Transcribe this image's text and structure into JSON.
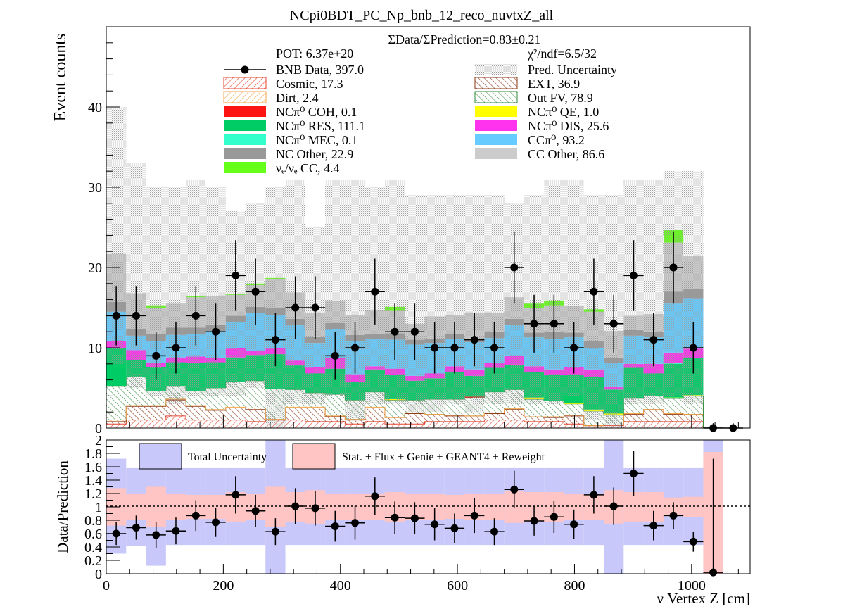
{
  "title": "NCpi0BDT_PC_Np_bnb_12_reco_nuvtxZ_all",
  "colors": {
    "cosmic": "#e8432e",
    "dirt": "#f7a64b",
    "ext": "#8b3a1a",
    "outfv": "#2e8b3a",
    "nc_coh": "#ff1414",
    "nc_res": "#00cc66",
    "nc_mec": "#33ffcc",
    "nc_qe": "#ffff00",
    "nc_dis": "#ff33ee",
    "cc_pi0": "#66ccff",
    "nc_other": "#999999",
    "cc_other": "#cccccc",
    "nue_cc": "#66ff1a",
    "pred_unc": "#b0b0b0",
    "total_unc": "#c8c8fa",
    "syst_unc": "#ffc4c4"
  },
  "top": {
    "ylabel": "Event counts",
    "ratio_text": "ΣData/ΣPrediction=0.83±0.21",
    "pot_text": "POT: 6.37e+20",
    "chi2_text": "χ²/ndf=6.5/32",
    "legend": {
      "bnb_data": "BNB Data, 397.0",
      "pred_unc": "Pred. Uncertainty",
      "cosmic": "Cosmic, 17.3",
      "ext": "EXT, 36.9",
      "dirt": "Dirt, 2.4",
      "outfv": "Out FV, 78.9",
      "nc_coh": "NCπ⁰ COH,  0.1",
      "nc_qe": "NCπ⁰ QE,  1.0",
      "nc_res": "NCπ⁰ RES,  111.1",
      "nc_dis": "NCπ⁰ DIS,  25.6",
      "nc_mec": "NCπ⁰ MEC,  0.1",
      "cc_pi0": "CCπ⁰, 93.2",
      "nc_other": "NC Other, 22.9",
      "cc_other": "CC Other, 86.6",
      "nue_cc": "νₑ/ν̄ₑ CC, 4.4"
    }
  },
  "bottom": {
    "ylabel": "Data/Prediction",
    "xlabel": "ν Vertex Z [cm]",
    "legend_total": "Total Uncertainty",
    "legend_syst": "Stat. + Flux + Genie + GEANT4 + Reweight"
  },
  "chart_data": {
    "type": "bar",
    "stacked": true,
    "x_edges": [
      0,
      34,
      68,
      102,
      136,
      170,
      204,
      238,
      272,
      306,
      340,
      374,
      408,
      442,
      476,
      510,
      544,
      578,
      612,
      646,
      680,
      714,
      748,
      782,
      816,
      850,
      884,
      918,
      952,
      986,
      1020,
      1054,
      1088
    ],
    "xlim": [
      0,
      1100
    ],
    "x_ticks": [
      0,
      200,
      400,
      600,
      800,
      1000
    ],
    "ylim": [
      0,
      50
    ],
    "y_ticks": [
      0,
      10,
      20,
      30,
      40
    ],
    "series": [
      {
        "key": "cosmic",
        "values": [
          0.5,
          1.0,
          1.0,
          1.5,
          1.0,
          1.0,
          1.0,
          0.8,
          1.0,
          1.0,
          0.8,
          0.8,
          0.5,
          0.8,
          0.5,
          0.5,
          0.8,
          0.8,
          0.8,
          1.0,
          1.0,
          0.8,
          0.8,
          0.5,
          0.3,
          0.3,
          0.8,
          0.8,
          0.8,
          0.8,
          0,
          0
        ]
      },
      {
        "key": "ext",
        "values": [
          0.3,
          1.7,
          1.7,
          2.0,
          1.7,
          1.2,
          1.5,
          1.5,
          0,
          1.5,
          1.7,
          0.6,
          0.5,
          1.7,
          0.8,
          1.3,
          0.9,
          0.7,
          0.7,
          0.8,
          1.3,
          0.6,
          0.5,
          1.0,
          0,
          0.1,
          0.9,
          1.5,
          0.9,
          0.9,
          0,
          0
        ]
      },
      {
        "key": "dirt",
        "values": [
          0.2,
          0.1,
          0.1,
          0.1,
          0.1,
          0.1,
          0.1,
          0.2,
          0.1,
          0.1,
          0.1,
          0.1,
          0.1,
          0.1,
          0,
          0.1,
          0,
          0.1,
          0,
          0.1,
          0.1,
          0,
          0.1,
          0.1,
          0,
          0,
          0.1,
          0,
          0.1,
          0,
          0,
          0
        ]
      },
      {
        "key": "outfv",
        "values": [
          4.2,
          3.6,
          1.8,
          1.6,
          1.8,
          2.7,
          3.2,
          3.4,
          3.8,
          2.2,
          1.8,
          2.7,
          2.4,
          1.9,
          2.2,
          1.6,
          1.9,
          2.0,
          2.3,
          2.6,
          2.4,
          2.2,
          2.0,
          1.4,
          1.8,
          1.2,
          1.9,
          1.7,
          1.9,
          2.3,
          0.1,
          0
        ]
      },
      {
        "key": "nc_coh",
        "values": [
          0,
          0,
          0,
          0,
          0,
          0,
          0,
          0,
          0,
          0,
          0,
          0,
          0,
          0,
          0,
          0,
          0,
          0,
          0.1,
          0,
          0,
          0,
          0,
          0,
          0,
          0,
          0,
          0,
          0,
          0,
          0,
          0
        ]
      },
      {
        "key": "nc_qe",
        "values": [
          0,
          0,
          0,
          0,
          0,
          0,
          0,
          0,
          0,
          0,
          0,
          0,
          0,
          0,
          0.1,
          0,
          0,
          0,
          0,
          0,
          0,
          0.2,
          0,
          0.1,
          0.2,
          0.2,
          0,
          0,
          0.1,
          0.1,
          0,
          0
        ]
      },
      {
        "key": "nc_res",
        "values": [
          4.8,
          2.1,
          3.0,
          3.0,
          3.5,
          3.2,
          3.0,
          3.2,
          4.3,
          3.0,
          2.4,
          3.2,
          2.2,
          2.8,
          3.0,
          2.4,
          2.6,
          3.4,
          2.6,
          3.0,
          3.1,
          3.2,
          3.2,
          3.5,
          4.1,
          3.0,
          3.8,
          2.8,
          4.2,
          4.6,
          0,
          0
        ]
      },
      {
        "key": "nc_mec",
        "values": [
          0,
          0,
          0,
          0,
          0,
          0,
          0,
          0,
          0,
          0,
          0,
          0,
          0,
          0,
          0,
          0,
          0,
          0,
          0,
          0,
          0,
          0,
          0,
          0,
          0,
          0,
          0,
          0,
          0.1,
          0,
          0,
          0
        ]
      },
      {
        "key": "nc_dis",
        "values": [
          0.8,
          1.2,
          0.5,
          0.6,
          0.8,
          0.5,
          1.2,
          0.5,
          0.8,
          0.6,
          0.8,
          1.3,
          1.0,
          0.4,
          0.8,
          0.6,
          0.6,
          0.7,
          0.8,
          0.6,
          1.1,
          0.7,
          0.7,
          1.0,
          0.9,
          0.3,
          0.5,
          1.2,
          1.3,
          1.2,
          0,
          0
        ]
      },
      {
        "key": "cc_pi0",
        "values": [
          3.7,
          1.8,
          2.7,
          2.8,
          2.8,
          3.4,
          3.2,
          4.7,
          4.1,
          4.4,
          3.0,
          3.6,
          4.1,
          3.4,
          3.6,
          3.9,
          3.8,
          3.4,
          3.4,
          3.1,
          3.8,
          3.6,
          3.8,
          3.7,
          2.7,
          3.0,
          3.5,
          3.3,
          6.1,
          6.2,
          0,
          0
        ]
      },
      {
        "key": "nc_other",
        "values": [
          1.2,
          0.8,
          0.9,
          0.9,
          0.8,
          0.8,
          0.8,
          0.8,
          0.9,
          0.8,
          0.8,
          0.8,
          0.8,
          0.6,
          0.8,
          0.6,
          0.5,
          0.6,
          0.4,
          0.8,
          0.8,
          0.6,
          0.9,
          0.6,
          0.9,
          0.6,
          0.7,
          0.7,
          1.5,
          1.2,
          0,
          0
        ]
      },
      {
        "key": "cc_other",
        "values": [
          6.0,
          4.5,
          3.3,
          3.0,
          3.8,
          3.6,
          2.6,
          2.7,
          3.6,
          3.3,
          3.0,
          2.8,
          2.5,
          3.0,
          2.8,
          2.0,
          2.8,
          2.4,
          3.3,
          2.4,
          2.7,
          3.1,
          3.3,
          3.3,
          3.6,
          3.4,
          1.8,
          2.2,
          6.1,
          4.1,
          0,
          0
        ]
      },
      {
        "key": "nue_cc",
        "values": [
          0,
          0,
          0.3,
          0,
          0.1,
          0,
          0.1,
          0.2,
          0.1,
          0,
          0,
          0,
          0,
          0,
          0.5,
          0,
          0,
          0,
          0,
          0,
          0,
          0.5,
          0.6,
          0,
          0.3,
          0,
          0,
          0,
          1.6,
          0,
          0,
          0
        ]
      }
    ],
    "pred_unc_high": [
      40,
      33,
      30,
      30,
      31,
      30,
      27,
      28,
      30,
      31,
      25,
      31,
      31,
      30,
      31,
      29,
      29,
      29,
      29,
      29,
      28,
      29,
      31,
      31,
      29,
      29,
      31,
      31,
      32,
      32,
      0.2,
      0.1
    ],
    "pred_unc_low": [
      8,
      5,
      4,
      3,
      4,
      4,
      4,
      5,
      0,
      3,
      3,
      4,
      1,
      3,
      3,
      2,
      2,
      3,
      2,
      3,
      3,
      3,
      3,
      4,
      1,
      0,
      3,
      3,
      4,
      3,
      0,
      0
    ],
    "data": {
      "name": "BNB Data, 397.0",
      "values": [
        14,
        14,
        9,
        10,
        14,
        12,
        19,
        17,
        11,
        15,
        15,
        9,
        10,
        17,
        12,
        12,
        10,
        10,
        11,
        10,
        20,
        13,
        13,
        10,
        17,
        13,
        19,
        11,
        20,
        10,
        0,
        0
      ],
      "err": [
        3.7,
        3.7,
        3.0,
        3.2,
        3.7,
        3.5,
        4.4,
        4.1,
        3.3,
        3.9,
        3.9,
        3.0,
        3.2,
        4.1,
        3.5,
        3.5,
        3.2,
        3.2,
        3.3,
        3.2,
        4.5,
        3.6,
        3.6,
        3.2,
        4.1,
        3.6,
        4.4,
        3.3,
        4.5,
        3.2,
        0.6,
        0.6
      ]
    },
    "ratio": {
      "ylim": [
        0,
        2
      ],
      "y_ticks": [
        0,
        0.2,
        0.4,
        0.6,
        0.8,
        1,
        1.2,
        1.4,
        1.6,
        1.8,
        2
      ],
      "values": [
        0.6,
        0.69,
        0.58,
        0.64,
        0.87,
        0.77,
        1.18,
        0.94,
        0.63,
        1.01,
        0.98,
        0.71,
        0.76,
        1.16,
        0.84,
        0.83,
        0.74,
        0.68,
        0.87,
        0.63,
        1.26,
        0.79,
        0.85,
        0.74,
        1.18,
        1.01,
        1.5,
        0.72,
        0.87,
        0.48,
        0.02,
        null
      ],
      "err": [
        0.17,
        0.18,
        0.19,
        0.2,
        0.23,
        0.22,
        0.28,
        0.24,
        0.2,
        0.27,
        0.26,
        0.23,
        0.25,
        0.28,
        0.24,
        0.24,
        0.24,
        0.22,
        0.26,
        0.2,
        0.28,
        0.22,
        0.24,
        0.22,
        0.28,
        0.28,
        0.34,
        0.22,
        0.2,
        0.15,
        1.7,
        null
      ],
      "total_low": [
        0.3,
        0.42,
        0.12,
        0.43,
        0.43,
        0.43,
        0.43,
        0.43,
        0.0,
        0.43,
        0.43,
        0.43,
        0.43,
        0.43,
        0.43,
        0.43,
        0.43,
        0.43,
        0.43,
        0.43,
        0.43,
        0.43,
        0.43,
        0.43,
        0.43,
        0.0,
        0.43,
        0.43,
        0.43,
        0.43,
        0.0,
        0
      ],
      "total_high": [
        1.72,
        1.58,
        1.82,
        1.58,
        1.58,
        1.58,
        1.58,
        1.58,
        2.0,
        1.58,
        1.58,
        1.58,
        1.58,
        1.58,
        1.58,
        1.58,
        1.58,
        1.58,
        1.58,
        1.58,
        1.58,
        1.58,
        1.58,
        1.58,
        1.58,
        2.0,
        1.58,
        1.58,
        1.58,
        1.58,
        2.0,
        0
      ],
      "syst_low": [
        0.72,
        0.8,
        0.7,
        0.8,
        0.82,
        0.82,
        0.78,
        0.8,
        0.7,
        0.78,
        0.75,
        0.8,
        0.8,
        0.8,
        0.78,
        0.8,
        0.8,
        0.82,
        0.8,
        0.8,
        0.76,
        0.78,
        0.78,
        0.8,
        0.8,
        0.75,
        0.78,
        0.78,
        0.86,
        0.85,
        0.0,
        0
      ],
      "syst_high": [
        1.28,
        1.2,
        1.3,
        1.2,
        1.18,
        1.18,
        1.22,
        1.2,
        1.3,
        1.22,
        1.25,
        1.2,
        1.2,
        1.2,
        1.22,
        1.2,
        1.2,
        1.18,
        1.2,
        1.2,
        1.24,
        1.22,
        1.22,
        1.2,
        1.2,
        1.25,
        1.22,
        1.22,
        1.14,
        1.15,
        1.82,
        0
      ]
    }
  }
}
